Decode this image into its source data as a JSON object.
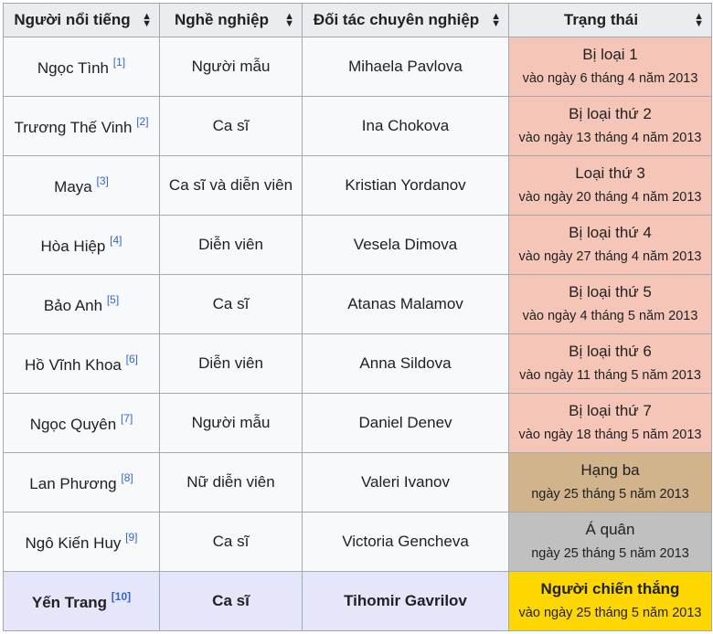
{
  "headers": [
    "Người nổi tiếng",
    "Nghề nghiệp",
    "Đối tác chuyên nghiệp",
    "Trạng thái"
  ],
  "colors": {
    "eliminated": "#f5c6b8",
    "third": "#d2b48c",
    "runner_up": "#c0c0c0",
    "winner": "#ffd700",
    "winner_row": "#e6e6fa"
  },
  "rows": [
    {
      "name": "Ngọc Tình",
      "ref": "[1]",
      "job": "Người mẫu",
      "partner": "Mihaela Pavlova",
      "status": "Bị loại 1",
      "date": "vào ngày 6 tháng 4 năm 2013",
      "kind": "eliminated"
    },
    {
      "name": "Trương Thế Vinh",
      "ref": "[2]",
      "job": "Ca sĩ",
      "partner": "Ina Chokova",
      "status": "Bị loại thứ 2",
      "date": "vào ngày 13 tháng 4 năm 2013",
      "kind": "eliminated"
    },
    {
      "name": "Maya",
      "ref": "[3]",
      "job": "Ca sĩ và diễn viên",
      "partner": "Kristian Yordanov",
      "status": "Loại thứ 3",
      "date": "vào ngày 20 tháng 4 năm 2013",
      "kind": "eliminated"
    },
    {
      "name": "Hòa Hiệp",
      "ref": "[4]",
      "job": "Diễn viên",
      "partner": "Vesela Dimova",
      "status": "Bị loại thứ 4",
      "date": "vào ngày 27 tháng 4 năm 2013",
      "kind": "eliminated"
    },
    {
      "name": "Bảo Anh",
      "ref": "[5]",
      "job": "Ca sĩ",
      "partner": "Atanas Malamov",
      "status": "Bị loại thứ 5",
      "date": "vào ngày 4 tháng 5 năm 2013",
      "kind": "eliminated"
    },
    {
      "name": "Hồ Vĩnh Khoa",
      "ref": "[6]",
      "job": "Diễn viên",
      "partner": "Anna Sildova",
      "status": "Bị loại thứ 6",
      "date": "vào ngày 11 tháng 5 năm 2013",
      "kind": "eliminated"
    },
    {
      "name": "Ngọc Quyên",
      "ref": "[7]",
      "job": "Người mẫu",
      "partner": "Daniel Denev",
      "status": "Bị loại thứ 7",
      "date": "vào ngày 18 tháng 5 năm 2013",
      "kind": "eliminated"
    },
    {
      "name": "Lan Phương",
      "ref": "[8]",
      "job": "Nữ diễn viên",
      "partner": "Valeri Ivanov",
      "status": "Hạng ba",
      "date": "ngày 25 tháng 5 năm 2013",
      "kind": "third"
    },
    {
      "name": "Ngô Kiến Huy",
      "ref": "[9]",
      "job": "Ca sĩ",
      "partner": "Victoria Gencheva",
      "status": "Á quân",
      "date": "ngày 25 tháng 5 năm 2013",
      "kind": "runner_up"
    },
    {
      "name": "Yến Trang",
      "ref": "[10]",
      "job": "Ca sĩ",
      "partner": "Tihomir Gavrilov",
      "status": "Người chiến thắng",
      "date": "vào ngày 25 tháng 5 năm 2013",
      "kind": "winner"
    }
  ]
}
